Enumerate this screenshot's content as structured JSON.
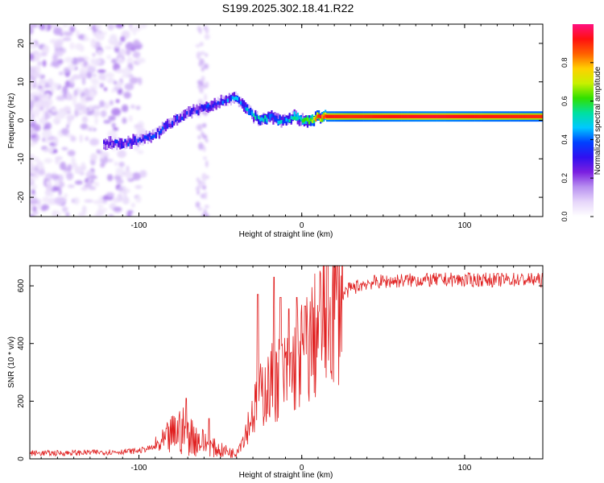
{
  "figure_title": "S199.2025.302.18.41.R22",
  "chart_data": [
    {
      "type": "heatmap",
      "title": "S199.2025.302.18.41.R22",
      "xlabel": "Height of straight line (km)",
      "ylabel": "Frequency (Hz)",
      "xlim": [
        -167,
        148
      ],
      "ylim": [
        -25,
        25
      ],
      "x_ticks": [
        -100,
        0,
        100
      ],
      "y_ticks": [
        -20,
        -10,
        0,
        10,
        20
      ],
      "colorbar": {
        "label": "Normalized spectral amplitude",
        "range": [
          0,
          1
        ],
        "ticks": [
          0.0,
          0.2,
          0.4,
          0.6,
          0.8
        ],
        "colors": [
          "#ffffff",
          "#e6d6fa",
          "#b890f0",
          "#7b1fe0",
          "#3010f0",
          "#0040ff",
          "#00c8ff",
          "#00e0a0",
          "#30e000",
          "#c8f000",
          "#ffd000",
          "#ff6000",
          "#ff1010",
          "#ff1080"
        ]
      },
      "ridge_centerline": {
        "x": [
          -122,
          -110,
          -100,
          -92,
          -85,
          -78,
          -70,
          -62,
          -55,
          -48,
          -42,
          -38,
          -34,
          -30,
          -25,
          -20,
          -15,
          -10,
          -5,
          0,
          5,
          10,
          15,
          30,
          50,
          80,
          110,
          148
        ],
        "freq_hz": [
          -6,
          -6,
          -5,
          -4,
          -2,
          0,
          2,
          3,
          4,
          5,
          6,
          5,
          3,
          1,
          0,
          1,
          0,
          0,
          1,
          0,
          0,
          1,
          1,
          1,
          1,
          1,
          1,
          1
        ],
        "amplitude": [
          0.25,
          0.3,
          0.3,
          0.32,
          0.35,
          0.3,
          0.28,
          0.3,
          0.32,
          0.35,
          0.4,
          0.38,
          0.42,
          0.45,
          0.45,
          0.45,
          0.42,
          0.45,
          0.5,
          0.55,
          0.7,
          0.85,
          0.92,
          0.9,
          0.92,
          0.94,
          0.92,
          0.9
        ]
      }
    },
    {
      "type": "line",
      "xlabel": "Height of straight line (km)",
      "ylabel": "SNR (10 * v/v)",
      "xlim": [
        -167,
        148
      ],
      "ylim": [
        0,
        670
      ],
      "x_ticks": [
        -100,
        0,
        100
      ],
      "y_ticks": [
        0,
        200,
        400,
        600
      ],
      "color": "#e02020",
      "series": [
        {
          "name": "SNR",
          "x": [
            -167,
            -150,
            -130,
            -110,
            -100,
            -95,
            -90,
            -85,
            -80,
            -75,
            -70,
            -65,
            -60,
            -55,
            -50,
            -45,
            -42,
            -40,
            -37,
            -34,
            -31,
            -28,
            -25,
            -22,
            -20,
            -18,
            -15,
            -12,
            -10,
            -8,
            -5,
            -3,
            0,
            3,
            5,
            8,
            10,
            12,
            15,
            18,
            20,
            25,
            30,
            35,
            40,
            50,
            60,
            70,
            80,
            90,
            100,
            110,
            120,
            130,
            140,
            148
          ],
          "y": [
            20,
            20,
            22,
            25,
            28,
            35,
            40,
            55,
            80,
            100,
            90,
            70,
            55,
            40,
            30,
            25,
            20,
            30,
            60,
            100,
            150,
            180,
            220,
            250,
            240,
            270,
            280,
            290,
            280,
            300,
            320,
            340,
            360,
            380,
            400,
            420,
            450,
            470,
            500,
            520,
            540,
            570,
            590,
            600,
            610,
            615,
            618,
            620,
            620,
            622,
            620,
            622,
            620,
            622,
            621,
            620
          ]
        }
      ]
    }
  ]
}
